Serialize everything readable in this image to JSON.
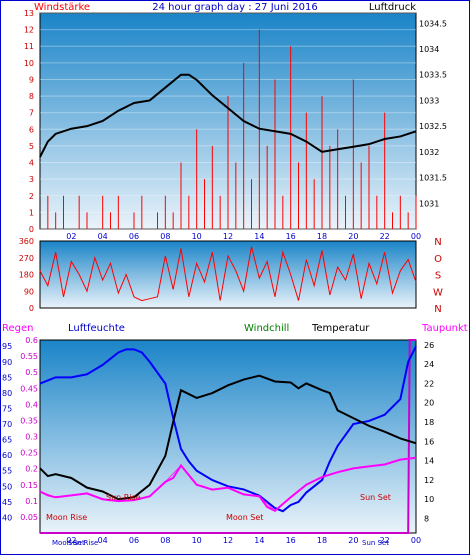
{
  "title": "24 hour graph day : 27 Juni 2016",
  "x_ticks": [
    "02",
    "04",
    "06",
    "08",
    "10",
    "12",
    "14",
    "16",
    "18",
    "20",
    "22",
    "00"
  ],
  "colors": {
    "wind": "#ff0000",
    "pressure": "#000000",
    "direction": "#ff0000",
    "humidity": "#0000ff",
    "temperature": "#000000",
    "windchill": "#ff00ff",
    "dewpoint": "#ff00ff",
    "panel_top": "#1a84c8",
    "panel_bottom": "#e8f2f9",
    "frame": "#0000cc"
  },
  "chart_data": [
    {
      "type": "line",
      "legend_left": "Windstärke",
      "legend_right": "Luftdruck",
      "x": {
        "min": 0,
        "max": 24,
        "tick_labels": [
          "02",
          "04",
          "06",
          "08",
          "10",
          "12",
          "14",
          "16",
          "18",
          "20",
          "22",
          "00"
        ]
      },
      "y_left": {
        "min": 0,
        "max": 13,
        "ticks": [
          "0",
          "1",
          "2",
          "3",
          "4",
          "5",
          "6",
          "7",
          "8",
          "9",
          "10",
          "11",
          "12",
          "13"
        ]
      },
      "y_right": {
        "min": 1030.5,
        "max": 1034.7,
        "ticks": [
          "1031",
          "1031.5",
          "1032",
          "1032.5",
          "1033",
          "1033.5",
          "1034",
          "1034.5"
        ]
      },
      "series": [
        {
          "name": "Luftdruck",
          "axis": "right",
          "x": [
            0,
            0.5,
            1,
            2,
            3,
            4,
            5,
            6,
            7,
            8,
            9,
            9.5,
            10,
            11,
            12,
            13,
            14,
            15,
            16,
            17,
            18,
            19,
            20,
            21,
            22,
            23,
            24
          ],
          "y": [
            1031.9,
            1032.2,
            1032.35,
            1032.45,
            1032.5,
            1032.6,
            1032.8,
            1032.95,
            1033.0,
            1033.25,
            1033.5,
            1033.5,
            1033.4,
            1033.1,
            1032.85,
            1032.6,
            1032.45,
            1032.4,
            1032.35,
            1032.2,
            1032.0,
            1032.05,
            1032.1,
            1032.15,
            1032.25,
            1032.3,
            1032.4
          ]
        },
        {
          "name": "Windstärke",
          "axis": "left",
          "x": [
            0,
            0.5,
            1,
            1.5,
            2,
            2.5,
            3,
            3.5,
            4,
            4.5,
            5,
            5.5,
            6,
            6.5,
            7,
            7.5,
            8,
            8.5,
            9,
            9.5,
            10,
            10.5,
            11,
            11.5,
            12,
            12.5,
            13,
            13.5,
            14,
            14.5,
            15,
            15.5,
            16,
            16.5,
            17,
            17.5,
            18,
            18.5,
            19,
            19.5,
            20,
            20.5,
            21,
            21.5,
            22,
            22.5,
            23,
            23.5,
            24
          ],
          "y": [
            1,
            2,
            1,
            2,
            0,
            2,
            1,
            0,
            2,
            1,
            2,
            0,
            1,
            2,
            0,
            1,
            2,
            1,
            4,
            2,
            6,
            3,
            5,
            2,
            8,
            4,
            10,
            3,
            12,
            5,
            9,
            2,
            11,
            4,
            7,
            3,
            8,
            5,
            6,
            2,
            9,
            4,
            5,
            2,
            7,
            1,
            2,
            1,
            2
          ]
        }
      ]
    },
    {
      "type": "line",
      "right_labels": [
        "N",
        "W",
        "S",
        "O",
        "N"
      ],
      "y": {
        "min": 0,
        "max": 360,
        "ticks": [
          "0",
          "90",
          "180",
          "270",
          "360"
        ]
      },
      "series": [
        {
          "name": "Windrichtung",
          "x": [
            0,
            0.5,
            1,
            1.5,
            2,
            2.5,
            3,
            3.5,
            4,
            4.5,
            5,
            5.5,
            6,
            6.5,
            7,
            7.5,
            8,
            8.5,
            9,
            9.5,
            10,
            10.5,
            11,
            11.5,
            12,
            12.5,
            13,
            13.5,
            14,
            14.5,
            15,
            15.5,
            16,
            16.5,
            17,
            17.5,
            18,
            18.5,
            19,
            19.5,
            20,
            20.5,
            21,
            21.5,
            22,
            22.5,
            23,
            23.5,
            24
          ],
          "y": [
            200,
            120,
            300,
            60,
            250,
            180,
            90,
            270,
            150,
            240,
            80,
            180,
            60,
            40,
            50,
            60,
            280,
            100,
            320,
            60,
            240,
            140,
            300,
            40,
            280,
            200,
            90,
            330,
            160,
            250,
            60,
            300,
            180,
            40,
            260,
            120,
            310,
            70,
            220,
            150,
            290,
            50,
            240,
            130,
            300,
            80,
            200,
            260,
            140
          ]
        }
      ]
    },
    {
      "type": "line",
      "legend": [
        "Regen",
        "Luftfeuchte",
        "Windchill",
        "Temperatur",
        "Taupunkt"
      ],
      "y_rain": {
        "min": 0,
        "max": 0.6,
        "ticks": [
          "0.05",
          "0.1",
          "0.15",
          "0.2",
          "0.25",
          "0.3",
          "0.35",
          "0.4",
          "0.45",
          "0.5",
          "0.55",
          "0.6"
        ]
      },
      "y_humidity": {
        "min": 35,
        "max": 97,
        "ticks": [
          "40",
          "45",
          "50",
          "55",
          "60",
          "65",
          "70",
          "75",
          "80",
          "85",
          "90",
          "95"
        ]
      },
      "y_temp": {
        "min": 6.5,
        "max": 26.5,
        "ticks": [
          "8",
          "10",
          "12",
          "14",
          "16",
          "18",
          "20",
          "22",
          "24",
          "26"
        ]
      },
      "annotations": [
        "Moon Rise",
        "Sun Rise",
        "Moon Set",
        "Sun Set",
        "Moon Set",
        "Sun Rise",
        "Sun Set"
      ],
      "series": [
        {
          "name": "Luftfeuchte",
          "x": [
            0,
            0.5,
            1,
            2,
            3,
            4,
            5,
            5.5,
            6,
            6.5,
            7,
            8,
            8.5,
            9,
            9.5,
            10,
            11,
            12,
            13,
            14,
            14.5,
            15,
            15.5,
            16,
            16.5,
            17,
            18,
            18.5,
            19,
            20,
            21,
            22,
            23,
            23.5,
            24
          ],
          "y": [
            83,
            84,
            85,
            85,
            86,
            89,
            93,
            94,
            94,
            93,
            90,
            83,
            72,
            62,
            58,
            55,
            52,
            50,
            49,
            47,
            45,
            43,
            42,
            44,
            45,
            48,
            52,
            58,
            63,
            70,
            71,
            73,
            78,
            90,
            95
          ]
        },
        {
          "name": "Temperatur",
          "x": [
            0,
            0.5,
            1,
            2,
            3,
            4,
            5,
            6,
            7,
            8,
            8.5,
            9,
            10,
            11,
            12,
            13,
            14,
            15,
            16,
            16.5,
            17,
            18,
            18.5,
            19,
            20,
            21,
            22,
            23,
            24
          ],
          "y": [
            13.2,
            12.4,
            12.6,
            12.2,
            11.2,
            10.8,
            10.0,
            10.2,
            11.5,
            14.5,
            18.0,
            21.3,
            20.5,
            21.0,
            21.8,
            22.4,
            22.8,
            22.2,
            22.1,
            21.5,
            22.0,
            21.3,
            21.0,
            19.2,
            18.4,
            17.6,
            17.0,
            16.3,
            15.8
          ]
        },
        {
          "name": "Taupunkt",
          "x": [
            0,
            0.5,
            1,
            2,
            3,
            4,
            5,
            6,
            7,
            8,
            8.5,
            9,
            10,
            11,
            12,
            13,
            14,
            14.5,
            15,
            15.5,
            16,
            17,
            18,
            19,
            20,
            21,
            22,
            23,
            24
          ],
          "y": [
            10.8,
            10.4,
            10.2,
            10.4,
            10.6,
            10.0,
            9.8,
            9.9,
            10.3,
            11.8,
            12.2,
            13.5,
            11.5,
            11.0,
            11.2,
            10.5,
            10.3,
            9.2,
            8.8,
            9.5,
            10.2,
            11.5,
            12.3,
            12.8,
            13.2,
            13.4,
            13.6,
            14.1,
            14.3
          ]
        },
        {
          "name": "Windchill",
          "x": [
            0,
            1,
            2,
            3,
            4,
            5,
            6,
            7,
            8,
            9,
            10,
            11,
            12,
            13,
            14,
            15,
            16,
            17,
            18,
            19,
            20,
            21,
            22,
            23,
            24
          ],
          "y": [
            10.8,
            10.2,
            10.4,
            10.6,
            10.0,
            9.8,
            9.9,
            10.3,
            11.8,
            13.5,
            11.5,
            11.0,
            11.2,
            10.5,
            10.3,
            8.8,
            10.2,
            11.5,
            12.3,
            12.8,
            13.2,
            13.4,
            13.6,
            14.1,
            14.3
          ]
        },
        {
          "name": "Regen",
          "x": [
            0,
            23.5,
            23.6,
            24
          ],
          "y": [
            0,
            0,
            0.6,
            0.6
          ]
        }
      ]
    }
  ]
}
